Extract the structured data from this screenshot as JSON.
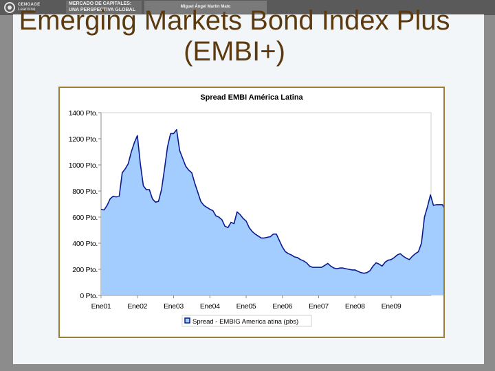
{
  "header": {
    "logo_line1": "CENGAGE",
    "logo_line2": "Learning",
    "book_line1": "MERCADO DE CAPITALES:",
    "book_line2": "UNA PERSPECTIVA GLOBAL",
    "author": "Miguel Ángel Martín Mato"
  },
  "slide": {
    "title_line1": "Emerging Markets Bond Index Plus",
    "title_line2": "(EMBI+)"
  },
  "colors": {
    "area_fill": "#a3ccff",
    "line": "#0a1a8c",
    "plot_bg": "#ffffff",
    "title_text": "#5c3a10",
    "frame_border": "#9a7f35"
  },
  "chart_data": {
    "type": "area",
    "title": "Spread EMBI América Latina",
    "xlabel": "",
    "ylabel": "",
    "ylim": [
      0,
      1400
    ],
    "y_ticks": [
      {
        "value": 0,
        "label": "0 Pto."
      },
      {
        "value": 200,
        "label": "200 Pto."
      },
      {
        "value": 400,
        "label": "400 Pto."
      },
      {
        "value": 600,
        "label": "600 Pto."
      },
      {
        "value": 800,
        "label": "800 Pto."
      },
      {
        "value": 1000,
        "label": "1000 Pto."
      },
      {
        "value": 1200,
        "label": "1200 Pto."
      },
      {
        "value": 1400,
        "label": "1400 Pto."
      }
    ],
    "x_ticks": [
      "Ene01",
      "Ene02",
      "Ene03",
      "Ene04",
      "Ene05",
      "Ene06",
      "Ene07",
      "Ene08",
      "Ene09"
    ],
    "x_start": "2001-01",
    "legend": {
      "position": "bottom",
      "label": "Spread - EMBIG America   atina (pbs)"
    },
    "grid": false,
    "series": [
      {
        "name": "Spread - EMBIG America   atina (pbs)",
        "points": [
          [
            "2001-01",
            660
          ],
          [
            "2001-02",
            655
          ],
          [
            "2001-03",
            690
          ],
          [
            "2001-04",
            740
          ],
          [
            "2001-05",
            760
          ],
          [
            "2001-06",
            755
          ],
          [
            "2001-07",
            760
          ],
          [
            "2001-08",
            940
          ],
          [
            "2001-09",
            970
          ],
          [
            "2001-10",
            1010
          ],
          [
            "2001-11",
            1100
          ],
          [
            "2001-12",
            1170
          ],
          [
            "2002-01",
            1225
          ],
          [
            "2002-02",
            1010
          ],
          [
            "2002-03",
            840
          ],
          [
            "2002-04",
            810
          ],
          [
            "2002-05",
            810
          ],
          [
            "2002-06",
            740
          ],
          [
            "2002-07",
            715
          ],
          [
            "2002-08",
            720
          ],
          [
            "2002-09",
            810
          ],
          [
            "2002-10",
            970
          ],
          [
            "2002-11",
            1140
          ],
          [
            "2002-12",
            1240
          ],
          [
            "2003-01",
            1240
          ],
          [
            "2003-02",
            1270
          ],
          [
            "2003-03",
            1110
          ],
          [
            "2003-04",
            1050
          ],
          [
            "2003-05",
            990
          ],
          [
            "2003-06",
            960
          ],
          [
            "2003-07",
            940
          ],
          [
            "2003-08",
            860
          ],
          [
            "2003-09",
            790
          ],
          [
            "2003-10",
            720
          ],
          [
            "2003-11",
            690
          ],
          [
            "2003-12",
            675
          ],
          [
            "2004-01",
            660
          ],
          [
            "2004-02",
            650
          ],
          [
            "2004-03",
            610
          ],
          [
            "2004-04",
            600
          ],
          [
            "2004-05",
            580
          ],
          [
            "2004-06",
            530
          ],
          [
            "2004-07",
            520
          ],
          [
            "2004-08",
            560
          ],
          [
            "2004-09",
            550
          ],
          [
            "2004-10",
            640
          ],
          [
            "2004-11",
            620
          ],
          [
            "2004-12",
            590
          ],
          [
            "2005-01",
            570
          ],
          [
            "2005-02",
            520
          ],
          [
            "2005-03",
            490
          ],
          [
            "2005-04",
            470
          ],
          [
            "2005-05",
            455
          ],
          [
            "2005-06",
            440
          ],
          [
            "2005-07",
            440
          ],
          [
            "2005-08",
            445
          ],
          [
            "2005-09",
            450
          ],
          [
            "2005-10",
            470
          ],
          [
            "2005-11",
            470
          ],
          [
            "2005-12",
            420
          ],
          [
            "2006-01",
            370
          ],
          [
            "2006-02",
            335
          ],
          [
            "2006-03",
            320
          ],
          [
            "2006-04",
            310
          ],
          [
            "2006-05",
            295
          ],
          [
            "2006-06",
            290
          ],
          [
            "2006-07",
            275
          ],
          [
            "2006-08",
            265
          ],
          [
            "2006-09",
            250
          ],
          [
            "2006-10",
            225
          ],
          [
            "2006-11",
            215
          ],
          [
            "2006-12",
            215
          ],
          [
            "2007-01",
            215
          ],
          [
            "2007-02",
            215
          ],
          [
            "2007-03",
            230
          ],
          [
            "2007-04",
            245
          ],
          [
            "2007-05",
            225
          ],
          [
            "2007-06",
            210
          ],
          [
            "2007-07",
            205
          ],
          [
            "2007-08",
            210
          ],
          [
            "2007-09",
            210
          ],
          [
            "2007-10",
            205
          ],
          [
            "2007-11",
            200
          ],
          [
            "2007-12",
            195
          ],
          [
            "2008-01",
            195
          ],
          [
            "2008-02",
            185
          ],
          [
            "2008-03",
            175
          ],
          [
            "2008-04",
            170
          ],
          [
            "2008-05",
            175
          ],
          [
            "2008-06",
            190
          ],
          [
            "2008-07",
            225
          ],
          [
            "2008-08",
            250
          ],
          [
            "2008-09",
            240
          ],
          [
            "2008-10",
            225
          ],
          [
            "2008-11",
            255
          ],
          [
            "2008-12",
            270
          ],
          [
            "2009-01",
            275
          ],
          [
            "2009-02",
            290
          ],
          [
            "2009-03",
            310
          ],
          [
            "2009-04",
            320
          ],
          [
            "2009-05",
            300
          ],
          [
            "2009-06",
            285
          ],
          [
            "2009-07",
            275
          ],
          [
            "2009-08",
            300
          ],
          [
            "2009-09",
            320
          ],
          [
            "2009-10",
            335
          ],
          [
            "2009-11",
            400
          ],
          [
            "2009-12",
            600
          ],
          [
            "2010-01",
            680
          ],
          [
            "2010-02",
            770
          ],
          [
            "2010-03",
            690
          ],
          [
            "2010-04",
            695
          ],
          [
            "2010-05",
            695
          ],
          [
            "2010-06",
            695
          ],
          [
            "2010-07",
            640
          ]
        ]
      }
    ]
  }
}
